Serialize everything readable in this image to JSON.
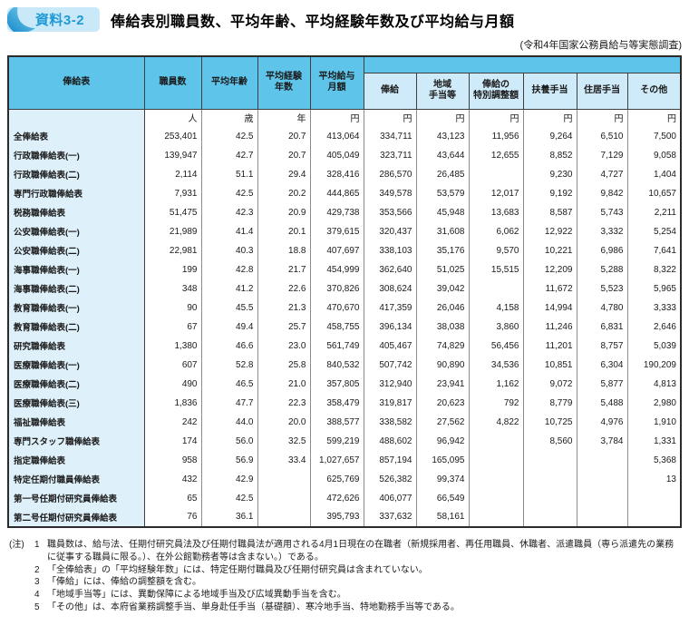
{
  "badge": {
    "label": "資料3-2"
  },
  "header": {
    "title": "俸給表別職員数、平均年齢、平均経験年数及び平均給与月額",
    "subtitle": "(令和4年国家公務員給与等実態調査)"
  },
  "colors": {
    "header_band_blue": "#5ec4ea",
    "subheader_blue": "#cfeaf8",
    "label_column_blue": "#def0fa",
    "badge_background": "#c9e9f8",
    "badge_swoosh_blue": "#1f97d4",
    "badge_text_blue": "#1f9ad6",
    "table_border": "#2b2b2b"
  },
  "table": {
    "col_headers": {
      "salary_table": "俸給表",
      "staff_count": "職員数",
      "avg_age": "平均年齢",
      "avg_experience": "平均経験\n年数",
      "avg_monthly_salary": "平均給与\n月額",
      "sub": [
        "俸給",
        "地域\n手当等",
        "俸給の\n特別調整額",
        "扶養手当",
        "住居手当",
        "その他"
      ]
    },
    "units": [
      "人",
      "歳",
      "年",
      "円",
      "円",
      "円",
      "円",
      "円",
      "円",
      "円"
    ],
    "rows": [
      [
        "全俸給表",
        "253,401",
        "42.5",
        "20.7",
        "413,064",
        "334,711",
        "43,123",
        "11,956",
        "9,264",
        "6,510",
        "7,500"
      ],
      [
        "行政職俸給表(一)",
        "139,947",
        "42.7",
        "20.7",
        "405,049",
        "323,711",
        "43,644",
        "12,655",
        "8,852",
        "7,129",
        "9,058"
      ],
      [
        "行政職俸給表(二)",
        "2,114",
        "51.1",
        "29.4",
        "328,416",
        "286,570",
        "26,485",
        "",
        "9,230",
        "4,727",
        "1,404"
      ],
      [
        "専門行政職俸給表",
        "7,931",
        "42.5",
        "20.2",
        "444,865",
        "349,578",
        "53,579",
        "12,017",
        "9,192",
        "9,842",
        "10,657"
      ],
      [
        "税務職俸給表",
        "51,475",
        "42.3",
        "20.9",
        "429,738",
        "353,566",
        "45,948",
        "13,683",
        "8,587",
        "5,743",
        "2,211"
      ],
      [
        "公安職俸給表(一)",
        "21,989",
        "41.4",
        "20.1",
        "379,615",
        "320,437",
        "31,608",
        "6,062",
        "12,922",
        "3,332",
        "5,254"
      ],
      [
        "公安職俸給表(二)",
        "22,981",
        "40.3",
        "18.8",
        "407,697",
        "338,103",
        "35,176",
        "9,570",
        "10,221",
        "6,986",
        "7,641"
      ],
      [
        "海事職俸給表(一)",
        "199",
        "42.8",
        "21.7",
        "454,999",
        "362,640",
        "51,025",
        "15,515",
        "12,209",
        "5,288",
        "8,322"
      ],
      [
        "海事職俸給表(二)",
        "348",
        "41.2",
        "22.6",
        "370,826",
        "308,624",
        "39,042",
        "",
        "11,672",
        "5,523",
        "5,965"
      ],
      [
        "教育職俸給表(一)",
        "90",
        "45.5",
        "21.3",
        "470,670",
        "417,359",
        "26,046",
        "4,158",
        "14,994",
        "4,780",
        "3,333"
      ],
      [
        "教育職俸給表(二)",
        "67",
        "49.4",
        "25.7",
        "458,755",
        "396,134",
        "38,038",
        "3,860",
        "11,246",
        "6,831",
        "2,646"
      ],
      [
        "研究職俸給表",
        "1,380",
        "46.6",
        "23.0",
        "561,749",
        "405,467",
        "74,829",
        "56,456",
        "11,201",
        "8,757",
        "5,039"
      ],
      [
        "医療職俸給表(一)",
        "607",
        "52.8",
        "25.8",
        "840,532",
        "507,742",
        "90,890",
        "34,536",
        "10,851",
        "6,304",
        "190,209"
      ],
      [
        "医療職俸給表(二)",
        "490",
        "46.5",
        "21.0",
        "357,805",
        "312,940",
        "23,941",
        "1,162",
        "9,072",
        "5,877",
        "4,813"
      ],
      [
        "医療職俸給表(三)",
        "1,836",
        "47.7",
        "22.3",
        "358,479",
        "319,817",
        "20,623",
        "792",
        "8,779",
        "5,488",
        "2,980"
      ],
      [
        "福祉職俸給表",
        "242",
        "44.0",
        "20.0",
        "388,577",
        "338,582",
        "27,562",
        "4,822",
        "10,725",
        "4,976",
        "1,910"
      ],
      [
        "専門スタッフ職俸給表",
        "174",
        "56.0",
        "32.5",
        "599,219",
        "488,602",
        "96,942",
        "",
        "8,560",
        "3,784",
        "1,331"
      ],
      [
        "指定職俸給表",
        "958",
        "56.9",
        "33.4",
        "1,027,657",
        "857,194",
        "165,095",
        "",
        "",
        "",
        "5,368"
      ],
      [
        "特定任期付職員俸給表",
        "432",
        "42.9",
        "",
        "625,769",
        "526,382",
        "99,374",
        "",
        "",
        "",
        "13"
      ],
      [
        "第一号任期付研究員俸給表",
        "65",
        "42.5",
        "",
        "472,626",
        "406,077",
        "66,549",
        "",
        "",
        "",
        ""
      ],
      [
        "第二号任期付研究員俸給表",
        "76",
        "36.1",
        "",
        "395,793",
        "337,632",
        "58,161",
        "",
        "",
        "",
        ""
      ]
    ]
  },
  "notes": {
    "label": "(注)",
    "items": [
      {
        "num": "1",
        "text": "職員数は、給与法、任期付研究員法及び任期付職員法が適用される4月1日現在の在職者（新規採用者、再任用職員、休職者、派遣職員（専ら派遣先の業務に従事する職員に限る。）、在外公館勤務者等は含まない。）である。"
      },
      {
        "num": "2",
        "text": "「全俸給表」の「平均経験年数」には、特定任期付職員及び任期付研究員は含まれていない。"
      },
      {
        "num": "3",
        "text": "「俸給」には、俸給の調整額を含む。"
      },
      {
        "num": "4",
        "text": "「地域手当等」には、異動保障による地域手当及び広域異動手当を含む。"
      },
      {
        "num": "5",
        "text": "「その他」は、本府省業務調整手当、単身赴任手当（基礎額）、寒冷地手当、特地勤務手当等である。"
      }
    ]
  }
}
